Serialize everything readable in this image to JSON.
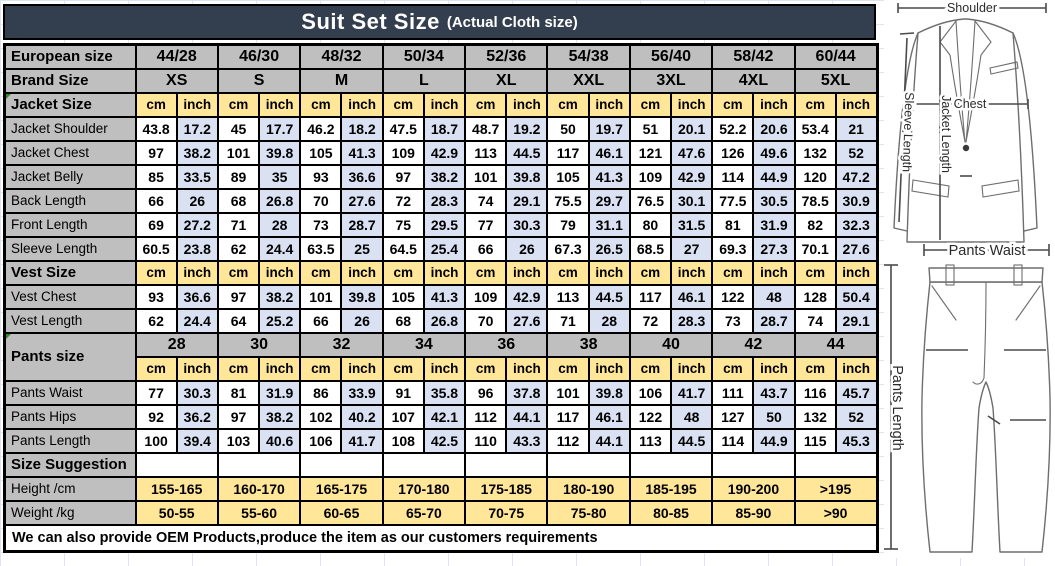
{
  "title": {
    "main": "Suit Set Size",
    "sub": "(Actual Cloth size)"
  },
  "units": {
    "cm": "cm",
    "inch": "inch"
  },
  "header": {
    "european_label": "European size",
    "european_sizes": [
      "44/28",
      "46/30",
      "48/32",
      "50/34",
      "52/36",
      "54/38",
      "56/40",
      "58/42",
      "60/44"
    ],
    "brand_label": "Brand Size",
    "brand_sizes": [
      "XS",
      "S",
      "M",
      "L",
      "XL",
      "XXL",
      "3XL",
      "4XL",
      "5XL"
    ]
  },
  "jacket": {
    "label": "Jacket Size",
    "rows": [
      {
        "label": "Jacket Shoulder",
        "cells": [
          "43.8",
          "17.2",
          "45",
          "17.7",
          "46.2",
          "18.2",
          "47.5",
          "18.7",
          "48.7",
          "19.2",
          "50",
          "19.7",
          "51",
          "20.1",
          "52.2",
          "20.6",
          "53.4",
          "21"
        ]
      },
      {
        "label": "Jacket Chest",
        "cells": [
          "97",
          "38.2",
          "101",
          "39.8",
          "105",
          "41.3",
          "109",
          "42.9",
          "113",
          "44.5",
          "117",
          "46.1",
          "121",
          "47.6",
          "126",
          "49.6",
          "132",
          "52"
        ]
      },
      {
        "label": "Jacket Belly",
        "cells": [
          "85",
          "33.5",
          "89",
          "35",
          "93",
          "36.6",
          "97",
          "38.2",
          "101",
          "39.8",
          "105",
          "41.3",
          "109",
          "42.9",
          "114",
          "44.9",
          "120",
          "47.2"
        ]
      },
      {
        "label": "Back Length",
        "cells": [
          "66",
          "26",
          "68",
          "26.8",
          "70",
          "27.6",
          "72",
          "28.3",
          "74",
          "29.1",
          "75.5",
          "29.7",
          "76.5",
          "30.1",
          "77.5",
          "30.5",
          "78.5",
          "30.9"
        ]
      },
      {
        "label": "Front Length",
        "cells": [
          "69",
          "27.2",
          "71",
          "28",
          "73",
          "28.7",
          "75",
          "29.5",
          "77",
          "30.3",
          "79",
          "31.1",
          "80",
          "31.5",
          "81",
          "31.9",
          "82",
          "32.3"
        ]
      },
      {
        "label": "Sleeve Length",
        "cells": [
          "60.5",
          "23.8",
          "62",
          "24.4",
          "63.5",
          "25",
          "64.5",
          "25.4",
          "66",
          "26",
          "67.3",
          "26.5",
          "68.5",
          "27",
          "69.3",
          "27.3",
          "70.1",
          "27.6"
        ]
      }
    ]
  },
  "vest": {
    "label": "Vest Size",
    "rows": [
      {
        "label": "Vest Chest",
        "cells": [
          "93",
          "36.6",
          "97",
          "38.2",
          "101",
          "39.8",
          "105",
          "41.3",
          "109",
          "42.9",
          "113",
          "44.5",
          "117",
          "46.1",
          "122",
          "48",
          "128",
          "50.4"
        ]
      },
      {
        "label": "Vest Length",
        "cells": [
          "62",
          "24.4",
          "64",
          "25.2",
          "66",
          "26",
          "68",
          "26.8",
          "70",
          "27.6",
          "71",
          "28",
          "72",
          "28.3",
          "73",
          "28.7",
          "74",
          "29.1"
        ]
      }
    ]
  },
  "pants": {
    "label": "Pants size",
    "sizes": [
      "28",
      "30",
      "32",
      "34",
      "36",
      "38",
      "40",
      "42",
      "44"
    ],
    "rows": [
      {
        "label": "Pants Waist",
        "cells": [
          "77",
          "30.3",
          "81",
          "31.9",
          "86",
          "33.9",
          "91",
          "35.8",
          "96",
          "37.8",
          "101",
          "39.8",
          "106",
          "41.7",
          "111",
          "43.7",
          "116",
          "45.7"
        ]
      },
      {
        "label": "Pants Hips",
        "cells": [
          "92",
          "36.2",
          "97",
          "38.2",
          "102",
          "40.2",
          "107",
          "42.1",
          "112",
          "44.1",
          "117",
          "46.1",
          "122",
          "48",
          "127",
          "50",
          "132",
          "52"
        ]
      },
      {
        "label": "Pants Length",
        "cells": [
          "100",
          "39.4",
          "103",
          "40.6",
          "106",
          "41.7",
          "108",
          "42.5",
          "110",
          "43.3",
          "112",
          "44.1",
          "113",
          "44.5",
          "114",
          "44.9",
          "115",
          "45.3"
        ]
      }
    ]
  },
  "suggestion": {
    "label": "Size Suggestion",
    "rows": [
      {
        "label": "Height /cm",
        "values": [
          "155-165",
          "160-170",
          "165-175",
          "170-180",
          "175-185",
          "180-190",
          "185-195",
          "190-200",
          ">195"
        ]
      },
      {
        "label": "Weight /kg",
        "values": [
          "50-55",
          "55-60",
          "60-65",
          "65-70",
          "70-75",
          "75-80",
          "80-85",
          "85-90",
          ">90"
        ]
      }
    ]
  },
  "footer_note": "We can also provide OEM Products,produce the item as our customers requirements",
  "diagram": {
    "shoulder": "Shoulder",
    "chest": "Chest",
    "jacket_length": "Jacket Length",
    "sleeve_length": "Sleeve Length",
    "pants_waist": "Pants Waist",
    "pants_length": "Pants Length"
  },
  "colors": {
    "title_bg": "#333F4F",
    "header_gray": "#BFBFBF",
    "unit_yellow": "#FFE699",
    "inch_blue": "#D9E1F2",
    "border": "#000000"
  }
}
